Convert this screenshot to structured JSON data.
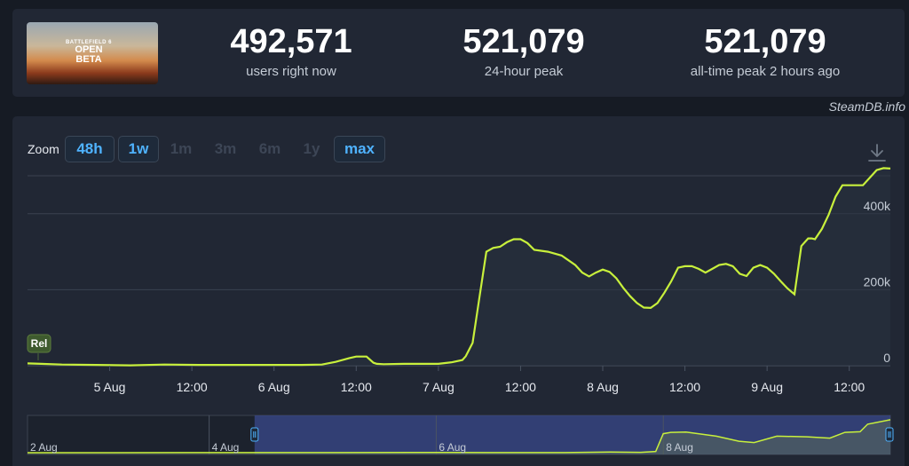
{
  "header": {
    "game_logo_line1": "BATTLEFIELD 6",
    "game_logo_line2": "OPEN BETA",
    "stats": [
      {
        "value": "492,571",
        "label": "users right now"
      },
      {
        "value": "521,079",
        "label": "24-hour peak"
      },
      {
        "value": "521,079",
        "label": "all-time peak 2 hours ago"
      }
    ]
  },
  "credit": "SteamDB.info",
  "zoom": {
    "label": "Zoom",
    "buttons": [
      {
        "label": "48h",
        "active": true
      },
      {
        "label": "1w",
        "active": true
      },
      {
        "label": "1m",
        "active": false
      },
      {
        "label": "3m",
        "active": false
      },
      {
        "label": "6m",
        "active": false
      },
      {
        "label": "1y",
        "active": false
      },
      {
        "label": "max",
        "active": true
      }
    ]
  },
  "colors": {
    "line": "#c8f03c",
    "accent": "#4fb3ff",
    "navigator_selection": "#3a4a8c"
  },
  "chart_data": {
    "type": "area",
    "title": "",
    "xlabel": "",
    "ylabel": "",
    "x_unit": "hours since 4 Aug 12:00",
    "ylim": [
      0,
      500000
    ],
    "yticks": [
      0,
      200000,
      400000
    ],
    "ytick_labels": [
      "0",
      "200k",
      "400k"
    ],
    "xtick_labels": [
      {
        "label": "5 Aug",
        "x": 12
      },
      {
        "label": "12:00",
        "x": 24
      },
      {
        "label": "6 Aug",
        "x": 36
      },
      {
        "label": "12:00",
        "x": 48
      },
      {
        "label": "7 Aug",
        "x": 60
      },
      {
        "label": "12:00",
        "x": 72
      },
      {
        "label": "8 Aug",
        "x": 84
      },
      {
        "label": "12:00",
        "x": 96
      },
      {
        "label": "9 Aug",
        "x": 108
      },
      {
        "label": "12:00",
        "x": 120
      }
    ],
    "xlim": [
      0,
      126
    ],
    "annotation": {
      "label": "Rel",
      "x": 0
    },
    "series": [
      {
        "x": [
          0,
          2,
          5,
          10,
          15,
          20,
          25,
          30,
          35,
          40,
          43,
          45,
          47,
          48,
          49.5,
          50.5,
          51,
          52,
          55,
          60,
          62,
          63.5,
          64,
          65,
          66,
          67,
          68,
          69,
          70,
          71,
          72,
          73,
          74,
          76,
          78,
          80,
          81,
          82,
          83,
          84,
          85,
          86,
          87,
          88,
          89,
          90,
          91,
          92,
          93,
          94,
          95,
          96,
          97,
          98,
          99,
          100,
          101,
          102,
          103,
          104,
          105,
          106,
          107,
          108,
          109,
          110,
          111,
          112,
          113,
          114,
          114.5,
          115,
          116,
          117,
          118,
          119,
          120,
          121,
          122,
          123,
          124,
          125,
          126
        ],
        "y": [
          6000,
          5000,
          3000,
          2000,
          1000,
          3000,
          2000,
          2000,
          2000,
          2000,
          3000,
          10000,
          20000,
          24000,
          24000,
          8000,
          5000,
          4000,
          5000,
          5000,
          9000,
          15000,
          25000,
          60000,
          180000,
          300000,
          310000,
          313000,
          325000,
          333000,
          333000,
          323000,
          305000,
          300000,
          290000,
          265000,
          245000,
          235000,
          245000,
          253000,
          247000,
          230000,
          205000,
          183000,
          165000,
          153000,
          152000,
          165000,
          192000,
          222000,
          258000,
          262000,
          262000,
          255000,
          245000,
          255000,
          265000,
          268000,
          262000,
          242000,
          236000,
          258000,
          265000,
          258000,
          242000,
          222000,
          203000,
          188000,
          315000,
          335000,
          335000,
          333000,
          360000,
          398000,
          445000,
          475000,
          475000,
          475000,
          475000,
          495000,
          515000,
          520000,
          519000
        ]
      }
    ],
    "navigator": {
      "xtick_labels": [
        "2 Aug",
        "4 Aug",
        "6 Aug",
        "8 Aug"
      ],
      "selected_range": [
        -42,
        126
      ],
      "xlim": [
        -102,
        126
      ],
      "series": {
        "x": [
          -102,
          -90,
          -60,
          -30,
          0,
          20,
          40,
          52,
          60,
          64,
          66,
          68,
          72,
          80,
          86,
          90,
          96,
          104,
          110,
          114,
          118,
          120,
          126
        ],
        "y": [
          0,
          0,
          1000,
          2000,
          4000,
          2000,
          2000,
          10000,
          5000,
          20000,
          300000,
          320000,
          325000,
          260000,
          180000,
          160000,
          260000,
          250000,
          230000,
          320000,
          330000,
          450000,
          520000
        ]
      }
    }
  }
}
